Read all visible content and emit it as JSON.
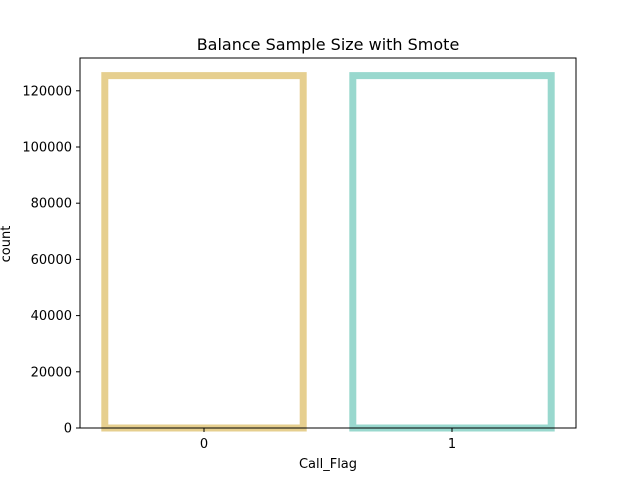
{
  "chart_data": {
    "type": "bar",
    "title": "Balance Sample Size with Smote",
    "xlabel": "Call_Flag",
    "ylabel": "count",
    "categories": [
      "0",
      "1"
    ],
    "values": [
      125400,
      125400
    ],
    "ylim": [
      0,
      131670
    ],
    "yticks": [
      0,
      20000,
      40000,
      60000,
      80000,
      100000,
      120000
    ],
    "bar_fill": "#ffffff",
    "bar_edge_colors": [
      "#e6cf8f",
      "#99d8ce"
    ],
    "grid": false,
    "legend": "none"
  }
}
